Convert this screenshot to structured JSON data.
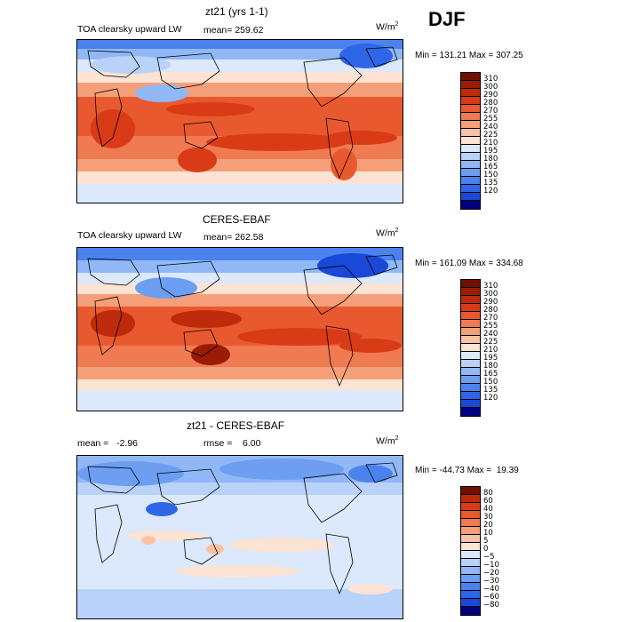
{
  "season": "DJF",
  "palettes": {
    "abs": [
      "#00007f",
      "#0a25b5",
      "#1a48d8",
      "#2f66e8",
      "#4b83ee",
      "#6c9ef2",
      "#91b8f6",
      "#b8d2f9",
      "#dce8fb",
      "#fde3d3",
      "#f9c2a5",
      "#f59f7a",
      "#f07a52",
      "#e9592f",
      "#d93b17",
      "#bf2a0a",
      "#9a1c05",
      "#730f00"
    ],
    "diff": [
      "#00007f",
      "#0a25b5",
      "#1a48d8",
      "#2f66e8",
      "#4b83ee",
      "#6c9ef2",
      "#91b8f6",
      "#b8d2f9",
      "#dce8fb",
      "#fde3d3",
      "#f9c2a5",
      "#f59f7a",
      "#f07a52",
      "#e9592f",
      "#d93b17",
      "#bf2a0a",
      "#730f00"
    ]
  },
  "panels": [
    {
      "title": "zt21 (yrs 1-1)",
      "variable": "TOA clearsky upward LW",
      "stat1": "mean= 259.62",
      "stat2": "",
      "units": "W/m",
      "units_sup": "2",
      "minmax": "Min = 131.21 Max = 307.25",
      "levels": [
        "310",
        "300",
        "290",
        "280",
        "270",
        "255",
        "240",
        "225",
        "210",
        "195",
        "180",
        "165",
        "150",
        "135",
        "120"
      ]
    },
    {
      "title": "CERES-EBAF",
      "variable": "TOA clearsky upward LW",
      "stat1": "mean= 262.58",
      "stat2": "",
      "units": "W/m",
      "units_sup": "2",
      "minmax": "Min = 161.09 Max = 334.68",
      "levels": [
        "310",
        "300",
        "290",
        "280",
        "270",
        "255",
        "240",
        "225",
        "210",
        "195",
        "180",
        "165",
        "150",
        "135",
        "120"
      ]
    },
    {
      "title": "zt21 - CERES-EBAF",
      "variable": "",
      "stat1": "mean =   -2.96",
      "stat2": "rmse =    6.00",
      "units": "W/m",
      "units_sup": "2",
      "minmax": "Min = -44.73 Max =  19.39",
      "levels": [
        "80",
        "60",
        "40",
        "30",
        "20",
        "10",
        "5",
        "0",
        "−5",
        "−10",
        "−20",
        "−30",
        "−40",
        "−60",
        "−80"
      ]
    }
  ]
}
